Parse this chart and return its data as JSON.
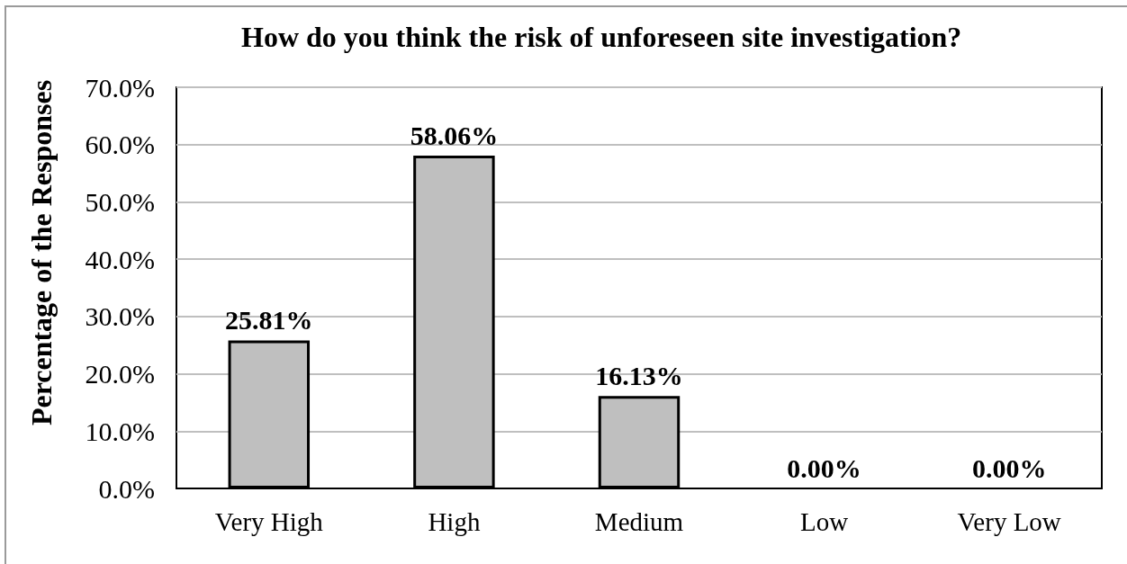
{
  "chart_data": {
    "type": "bar",
    "title": "How do you think the risk of unforeseen site investigation?",
    "ylabel": "Percentage of the Responses",
    "categories": [
      "Very High",
      "High",
      "Medium",
      "Low",
      "Very Low"
    ],
    "values": [
      25.81,
      58.06,
      16.13,
      0,
      0
    ],
    "color": "#bfbfbf",
    "value_labels": [
      "25.81%",
      "58.06%",
      "16.13%",
      "0.00%",
      "0.00%"
    ],
    "ylim": [
      0,
      70
    ],
    "yticks": [
      {
        "value": 0,
        "label": "0.0%"
      },
      {
        "value": 10,
        "label": "10.0%"
      },
      {
        "value": 20,
        "label": "20.0%"
      },
      {
        "value": 30,
        "label": "30.0%"
      },
      {
        "value": 40,
        "label": "40.0%"
      },
      {
        "value": 50,
        "label": "50.0%"
      },
      {
        "value": 60,
        "label": "60.0%"
      },
      {
        "value": 70,
        "label": "70.0%"
      }
    ],
    "grid": "y"
  }
}
